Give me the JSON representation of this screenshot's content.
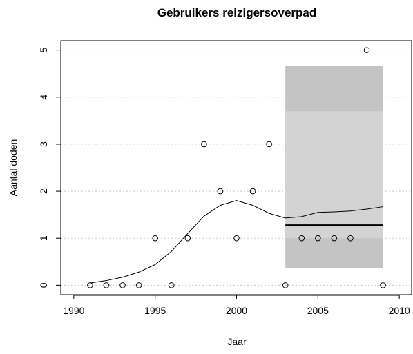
{
  "chart_data": {
    "type": "scatter",
    "title": "Gebruikers reizigersoverpad",
    "x_label": "Jaar",
    "y_label": "Aantal doden",
    "x": [
      1991,
      1992,
      1993,
      1994,
      1995,
      1996,
      1997,
      1998,
      1999,
      2000,
      2001,
      2002,
      2003,
      2004,
      2005,
      2006,
      2007,
      2008,
      2009
    ],
    "points": [
      0,
      0,
      0,
      0,
      1,
      0,
      1,
      3,
      2,
      1,
      2,
      3,
      0,
      1,
      1,
      1,
      1,
      5,
      0
    ],
    "trend": [
      0.05,
      0.1,
      0.17,
      0.28,
      0.44,
      0.72,
      1.1,
      1.47,
      1.7,
      1.8,
      1.7,
      1.53,
      1.43,
      1.46,
      1.55,
      1.56,
      1.58,
      1.62,
      1.67
    ],
    "bands": [
      {
        "x": [
          2003,
          2009
        ],
        "y": [
          0.36,
          4.67
        ],
        "color": "#c4c4c4"
      },
      {
        "x": [
          2003,
          2009
        ],
        "y": [
          1.0,
          3.7
        ],
        "color": "#d3d3d3"
      }
    ],
    "reference_line": {
      "x": [
        2003,
        2009
      ],
      "value": 1.28
    },
    "xlim": [
      1989.2,
      2010.8
    ],
    "ylim": [
      -0.2,
      5.2
    ],
    "xticks": [
      1990,
      1995,
      2000,
      2005,
      2010
    ],
    "yticks": [
      0,
      1,
      2,
      3,
      4,
      5
    ],
    "grid": true
  }
}
